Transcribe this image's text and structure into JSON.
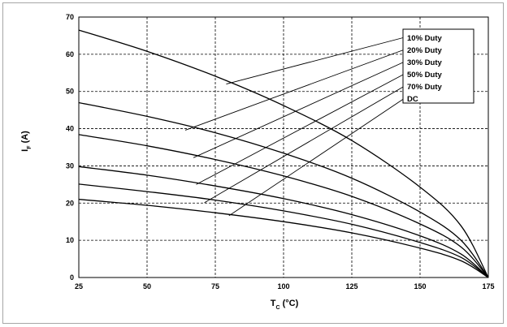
{
  "chart_data": {
    "type": "line",
    "xlabel_main": "T",
    "xlabel_sub": "C",
    "xlabel_unit": " (°C)",
    "ylabel_main": "I",
    "ylabel_sub": "F",
    "ylabel_unit": " (A)",
    "xlim": [
      25,
      175
    ],
    "ylim": [
      0,
      70
    ],
    "x_ticks": [
      25,
      50,
      75,
      100,
      125,
      150,
      175
    ],
    "y_ticks": [
      0,
      10,
      20,
      30,
      40,
      50,
      60,
      70
    ],
    "grid": true,
    "legend_placement": "top-right",
    "series": [
      {
        "name": "10% Duty",
        "values": [
          [
            25,
            66.5
          ],
          [
            50,
            60.8
          ],
          [
            75,
            54.1
          ],
          [
            100,
            46.2
          ],
          [
            125,
            36.8
          ],
          [
            150,
            24.3
          ],
          [
            165,
            13.9
          ],
          [
            175,
            0
          ]
        ]
      },
      {
        "name": "20% Duty",
        "values": [
          [
            25,
            47.0
          ],
          [
            50,
            43.3
          ],
          [
            75,
            38.9
          ],
          [
            100,
            33.4
          ],
          [
            125,
            26.7
          ],
          [
            150,
            17.6
          ],
          [
            165,
            10.0
          ],
          [
            175,
            0
          ]
        ]
      },
      {
        "name": "30% Duty",
        "values": [
          [
            25,
            38.4
          ],
          [
            50,
            35.4
          ],
          [
            75,
            31.7
          ],
          [
            100,
            27.3
          ],
          [
            125,
            21.8
          ],
          [
            150,
            14.4
          ],
          [
            165,
            8.2
          ],
          [
            175,
            0
          ]
        ]
      },
      {
        "name": "50% Duty",
        "values": [
          [
            25,
            29.8
          ],
          [
            50,
            27.5
          ],
          [
            75,
            24.6
          ],
          [
            100,
            21.2
          ],
          [
            125,
            16.9
          ],
          [
            150,
            11.2
          ],
          [
            165,
            6.3
          ],
          [
            175,
            0
          ]
        ]
      },
      {
        "name": "70% Duty",
        "values": [
          [
            25,
            25.1
          ],
          [
            50,
            23.1
          ],
          [
            75,
            20.8
          ],
          [
            100,
            17.9
          ],
          [
            125,
            14.3
          ],
          [
            150,
            9.4
          ],
          [
            165,
            5.4
          ],
          [
            175,
            0
          ]
        ]
      },
      {
        "name": "DC",
        "values": [
          [
            25,
            21.0
          ],
          [
            50,
            19.4
          ],
          [
            75,
            17.4
          ],
          [
            100,
            15.0
          ],
          [
            125,
            12.0
          ],
          [
            150,
            7.9
          ],
          [
            165,
            4.5
          ],
          [
            175,
            0
          ]
        ]
      }
    ],
    "leader_anchors": [
      [
        79,
        52.0
      ],
      [
        64,
        39.6
      ],
      [
        67,
        32.2
      ],
      [
        68,
        25.0
      ],
      [
        71,
        20.1
      ],
      [
        80,
        16.6
      ]
    ]
  }
}
